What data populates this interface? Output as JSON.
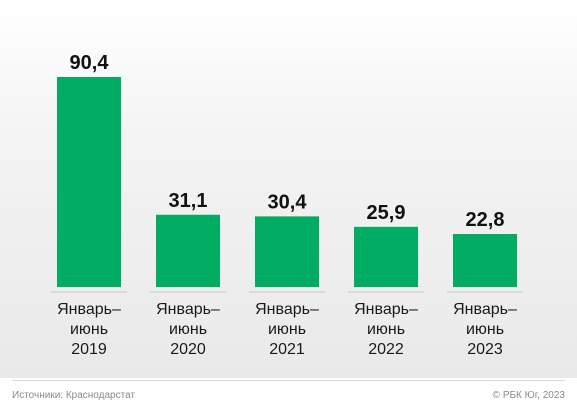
{
  "chart_data": {
    "type": "bar",
    "categories": [
      [
        "Январь–",
        "июнь",
        "2019"
      ],
      [
        "Январь–",
        "июнь",
        "2020"
      ],
      [
        "Январь–",
        "июнь",
        "2021"
      ],
      [
        "Январь–",
        "июнь",
        "2022"
      ],
      [
        "Январь–",
        "июнь",
        "2023"
      ]
    ],
    "values": [
      90.4,
      31.1,
      30.4,
      25.9,
      22.8
    ],
    "value_labels": [
      "90,4",
      "31,1",
      "30,4",
      "25,9",
      "22,8"
    ],
    "ylim": [
      0,
      90.4
    ],
    "bar_color": "#00ad62",
    "grid": false,
    "legend": "none"
  },
  "footer": {
    "source": "Источники: Краснодарстат",
    "credit": "© РБК Юг, 2023"
  }
}
